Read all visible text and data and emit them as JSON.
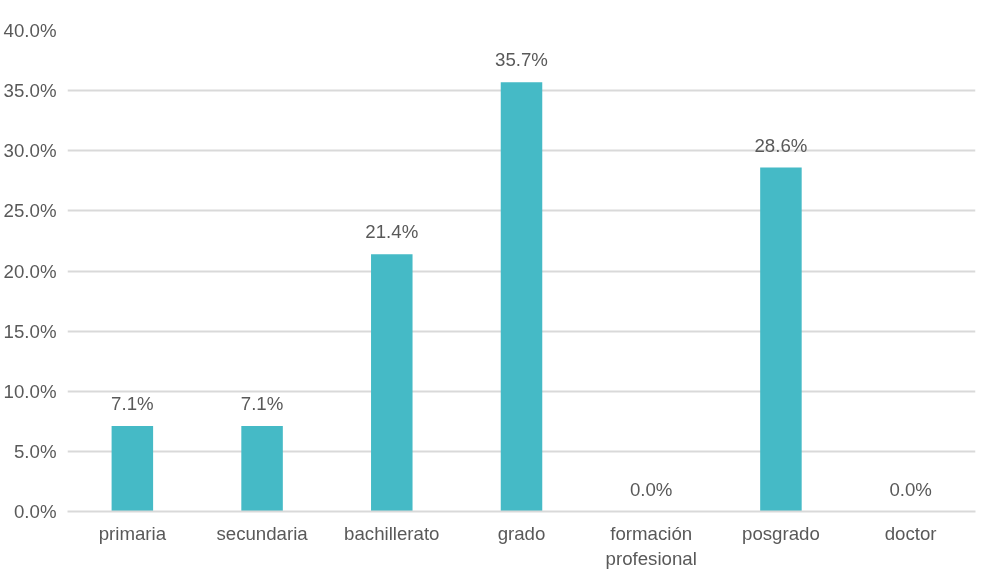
{
  "chart_data": {
    "type": "bar",
    "categories": [
      "primaria",
      "secundaria",
      "bachillerato",
      "grado",
      "formación profesional",
      "posgrado",
      "doctor"
    ],
    "values": [
      7.1,
      7.1,
      21.4,
      35.7,
      0.0,
      28.6,
      0.0
    ],
    "value_labels": [
      "7.1%",
      "7.1%",
      "21.4%",
      "35.7%",
      "0.0%",
      "28.6%",
      "0.0%"
    ],
    "color": "#45bac6",
    "ylim": [
      0,
      40
    ],
    "yticks": [
      {
        "value": 0,
        "label": "0.0%"
      },
      {
        "value": 5,
        "label": "5.0%"
      },
      {
        "value": 10,
        "label": "10.0%"
      },
      {
        "value": 15,
        "label": "15.0%"
      },
      {
        "value": 20,
        "label": "20.0%"
      },
      {
        "value": 25,
        "label": "25.0%"
      },
      {
        "value": 30,
        "label": "30.0%"
      },
      {
        "value": 35,
        "label": "35.0%"
      },
      {
        "value": 40,
        "label": "40.0%"
      }
    ],
    "grid": "y"
  }
}
